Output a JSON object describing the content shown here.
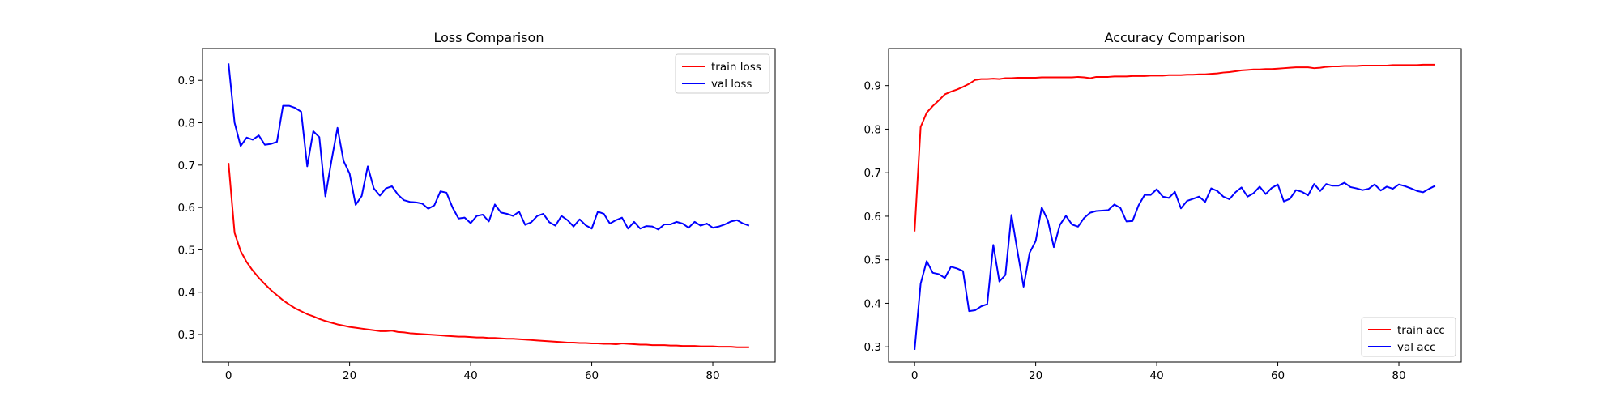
{
  "chart_data": [
    {
      "type": "line",
      "title": "Loss Comparison",
      "xlabel": "",
      "ylabel": "",
      "xlim": [
        -4.3,
        90.3
      ],
      "ylim": [
        0.235,
        0.975
      ],
      "xticks": [
        0,
        20,
        40,
        60,
        80
      ],
      "yticks": [
        0.3,
        0.4,
        0.5,
        0.6,
        0.7,
        0.8,
        0.9
      ],
      "legend_position": "top-right",
      "grid": false,
      "x": [
        0,
        1,
        2,
        3,
        4,
        5,
        6,
        7,
        8,
        9,
        10,
        11,
        12,
        13,
        14,
        15,
        16,
        17,
        18,
        19,
        20,
        21,
        22,
        23,
        24,
        25,
        26,
        27,
        28,
        29,
        30,
        31,
        32,
        33,
        34,
        35,
        36,
        37,
        38,
        39,
        40,
        41,
        42,
        43,
        44,
        45,
        46,
        47,
        48,
        49,
        50,
        51,
        52,
        53,
        54,
        55,
        56,
        57,
        58,
        59,
        60,
        61,
        62,
        63,
        64,
        65,
        66,
        67,
        68,
        69,
        70,
        71,
        72,
        73,
        74,
        75,
        76,
        77,
        78,
        79,
        80,
        81,
        82,
        83,
        84,
        85,
        86
      ],
      "series": [
        {
          "name": "train loss",
          "color": "#ff0000",
          "values": [
            0.705,
            0.54,
            0.497,
            0.471,
            0.451,
            0.434,
            0.419,
            0.405,
            0.393,
            0.381,
            0.371,
            0.362,
            0.355,
            0.348,
            0.343,
            0.337,
            0.332,
            0.328,
            0.324,
            0.321,
            0.318,
            0.316,
            0.314,
            0.312,
            0.31,
            0.308,
            0.308,
            0.309,
            0.306,
            0.305,
            0.303,
            0.302,
            0.301,
            0.3,
            0.299,
            0.298,
            0.297,
            0.296,
            0.295,
            0.295,
            0.294,
            0.293,
            0.293,
            0.292,
            0.292,
            0.291,
            0.29,
            0.29,
            0.289,
            0.288,
            0.287,
            0.286,
            0.285,
            0.284,
            0.283,
            0.282,
            0.281,
            0.281,
            0.28,
            0.28,
            0.279,
            0.279,
            0.278,
            0.278,
            0.277,
            0.279,
            0.278,
            0.277,
            0.276,
            0.276,
            0.275,
            0.275,
            0.275,
            0.274,
            0.274,
            0.273,
            0.273,
            0.273,
            0.272,
            0.272,
            0.272,
            0.271,
            0.271,
            0.271,
            0.27,
            0.27,
            0.27
          ]
        },
        {
          "name": "val loss",
          "color": "#0000ff",
          "values": [
            0.94,
            0.8,
            0.745,
            0.765,
            0.76,
            0.77,
            0.748,
            0.75,
            0.755,
            0.84,
            0.84,
            0.835,
            0.826,
            0.697,
            0.78,
            0.766,
            0.626,
            0.71,
            0.788,
            0.71,
            0.68,
            0.606,
            0.627,
            0.697,
            0.645,
            0.628,
            0.645,
            0.65,
            0.63,
            0.617,
            0.613,
            0.612,
            0.609,
            0.597,
            0.605,
            0.638,
            0.635,
            0.6,
            0.574,
            0.576,
            0.563,
            0.58,
            0.583,
            0.567,
            0.607,
            0.588,
            0.585,
            0.58,
            0.59,
            0.559,
            0.565,
            0.58,
            0.585,
            0.565,
            0.557,
            0.58,
            0.57,
            0.555,
            0.572,
            0.558,
            0.55,
            0.59,
            0.585,
            0.562,
            0.57,
            0.576,
            0.55,
            0.566,
            0.55,
            0.556,
            0.555,
            0.548,
            0.56,
            0.56,
            0.566,
            0.562,
            0.552,
            0.566,
            0.557,
            0.562,
            0.552,
            0.555,
            0.56,
            0.567,
            0.57,
            0.562,
            0.557
          ]
        }
      ]
    },
    {
      "type": "line",
      "title": "Accuracy Comparison",
      "xlabel": "",
      "ylabel": "",
      "xlim": [
        -4.3,
        90.3
      ],
      "ylim": [
        0.265,
        0.985
      ],
      "xticks": [
        0,
        20,
        40,
        60,
        80
      ],
      "yticks": [
        0.3,
        0.4,
        0.5,
        0.6,
        0.7,
        0.8,
        0.9
      ],
      "legend_position": "bottom-right",
      "grid": false,
      "x": [
        0,
        1,
        2,
        3,
        4,
        5,
        6,
        7,
        8,
        9,
        10,
        11,
        12,
        13,
        14,
        15,
        16,
        17,
        18,
        19,
        20,
        21,
        22,
        23,
        24,
        25,
        26,
        27,
        28,
        29,
        30,
        31,
        32,
        33,
        34,
        35,
        36,
        37,
        38,
        39,
        40,
        41,
        42,
        43,
        44,
        45,
        46,
        47,
        48,
        49,
        50,
        51,
        52,
        53,
        54,
        55,
        56,
        57,
        58,
        59,
        60,
        61,
        62,
        63,
        64,
        65,
        66,
        67,
        68,
        69,
        70,
        71,
        72,
        73,
        74,
        75,
        76,
        77,
        78,
        79,
        80,
        81,
        82,
        83,
        84,
        85,
        86
      ],
      "series": [
        {
          "name": "train acc",
          "color": "#ff0000",
          "values": [
            0.565,
            0.805,
            0.838,
            0.853,
            0.866,
            0.88,
            0.886,
            0.891,
            0.897,
            0.904,
            0.913,
            0.915,
            0.915,
            0.916,
            0.915,
            0.917,
            0.917,
            0.918,
            0.918,
            0.918,
            0.918,
            0.919,
            0.919,
            0.919,
            0.919,
            0.919,
            0.919,
            0.92,
            0.919,
            0.917,
            0.92,
            0.92,
            0.92,
            0.921,
            0.921,
            0.921,
            0.922,
            0.922,
            0.922,
            0.923,
            0.923,
            0.923,
            0.924,
            0.924,
            0.924,
            0.925,
            0.925,
            0.926,
            0.926,
            0.927,
            0.928,
            0.93,
            0.931,
            0.933,
            0.935,
            0.936,
            0.937,
            0.937,
            0.938,
            0.938,
            0.939,
            0.94,
            0.941,
            0.942,
            0.942,
            0.942,
            0.94,
            0.941,
            0.943,
            0.944,
            0.944,
            0.945,
            0.945,
            0.945,
            0.946,
            0.946,
            0.946,
            0.946,
            0.946,
            0.947,
            0.947,
            0.947,
            0.947,
            0.947,
            0.948,
            0.948,
            0.948
          ]
        },
        {
          "name": "val acc",
          "color": "#0000ff",
          "values": [
            0.293,
            0.445,
            0.497,
            0.47,
            0.467,
            0.458,
            0.484,
            0.48,
            0.474,
            0.382,
            0.384,
            0.393,
            0.398,
            0.534,
            0.45,
            0.465,
            0.603,
            0.519,
            0.438,
            0.516,
            0.543,
            0.62,
            0.591,
            0.529,
            0.58,
            0.601,
            0.581,
            0.576,
            0.596,
            0.608,
            0.612,
            0.613,
            0.614,
            0.627,
            0.619,
            0.588,
            0.589,
            0.625,
            0.649,
            0.649,
            0.662,
            0.645,
            0.642,
            0.656,
            0.618,
            0.635,
            0.64,
            0.645,
            0.633,
            0.664,
            0.658,
            0.645,
            0.639,
            0.655,
            0.666,
            0.645,
            0.653,
            0.668,
            0.651,
            0.665,
            0.673,
            0.634,
            0.64,
            0.66,
            0.656,
            0.648,
            0.674,
            0.658,
            0.674,
            0.67,
            0.67,
            0.677,
            0.667,
            0.664,
            0.66,
            0.663,
            0.673,
            0.659,
            0.668,
            0.663,
            0.673,
            0.669,
            0.664,
            0.658,
            0.655,
            0.663,
            0.67
          ]
        }
      ]
    }
  ]
}
